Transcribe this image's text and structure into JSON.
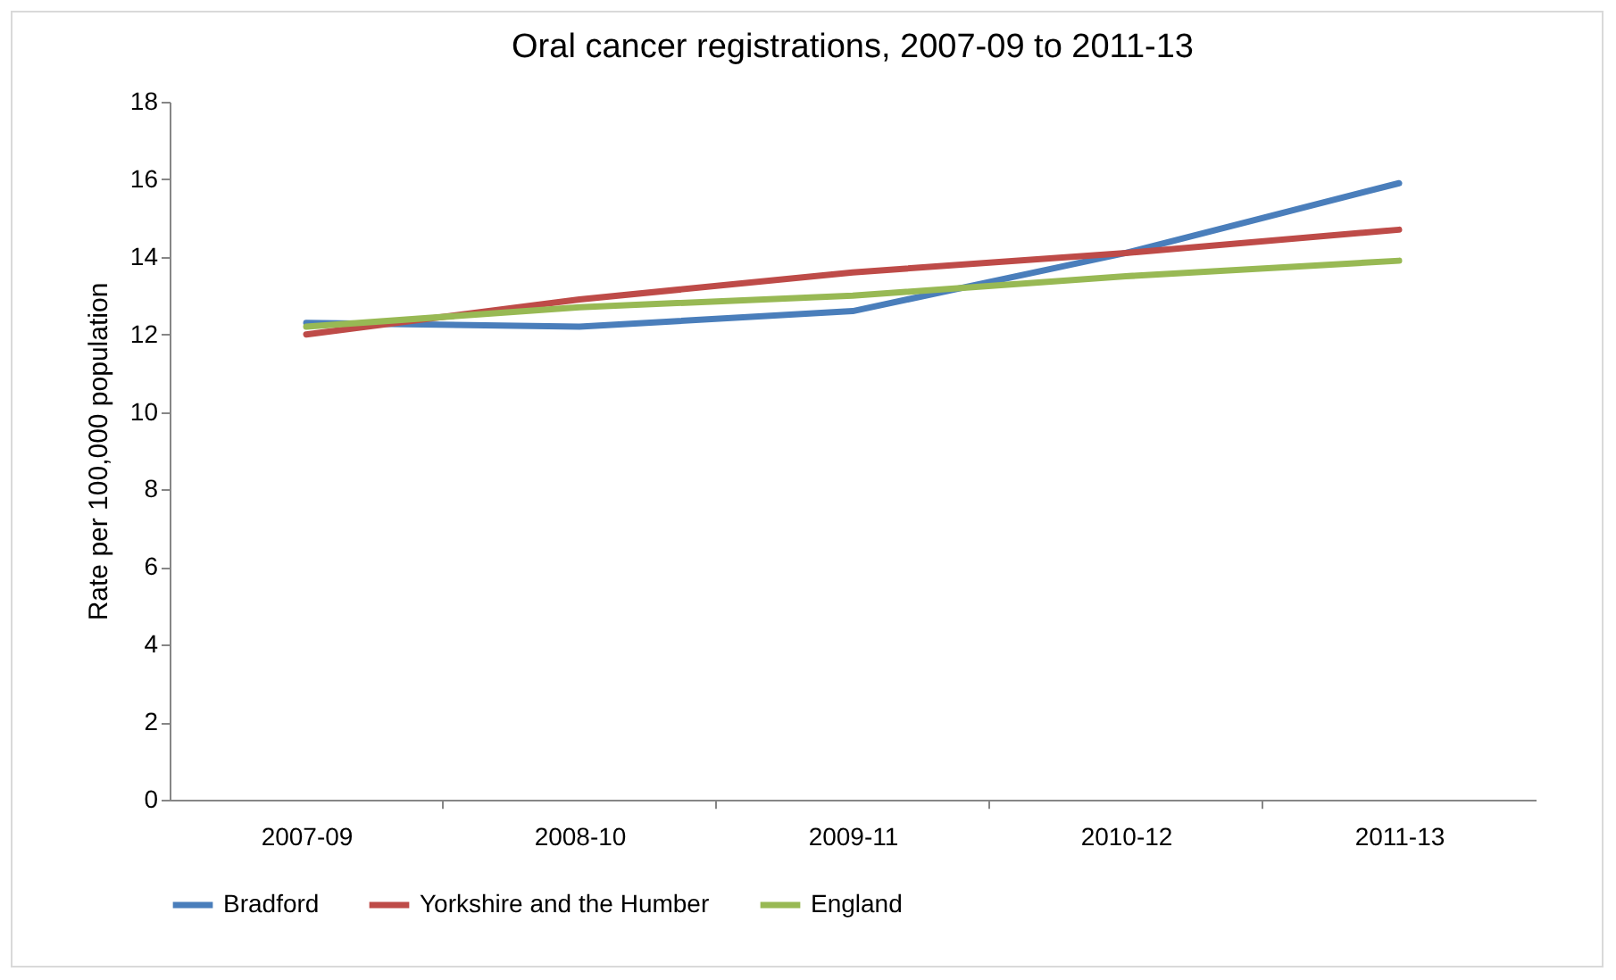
{
  "chart_data": {
    "type": "line",
    "title": "Oral cancer registrations, 2007-09 to 2011-13",
    "ylabel": "Rate per 100,000 population",
    "categories": [
      "2007-09",
      "2008-10",
      "2009-11",
      "2010-12",
      "2011-13"
    ],
    "series": [
      {
        "name": "Bradford",
        "color": "#4a7ebb",
        "values": [
          12.3,
          12.2,
          12.6,
          14.1,
          15.9
        ]
      },
      {
        "name": "Yorkshire and the Humber",
        "color": "#be4b48",
        "values": [
          12.0,
          12.9,
          13.6,
          14.1,
          14.7
        ]
      },
      {
        "name": "England",
        "color": "#98b954",
        "values": [
          12.2,
          12.7,
          13.0,
          13.5,
          13.9
        ]
      }
    ],
    "ylim": [
      0,
      18
    ],
    "yticks": [
      0,
      2,
      4,
      6,
      8,
      10,
      12,
      14,
      16,
      18
    ],
    "grid": false,
    "legend": "bottom",
    "marker": "none",
    "line_style": "solid"
  }
}
